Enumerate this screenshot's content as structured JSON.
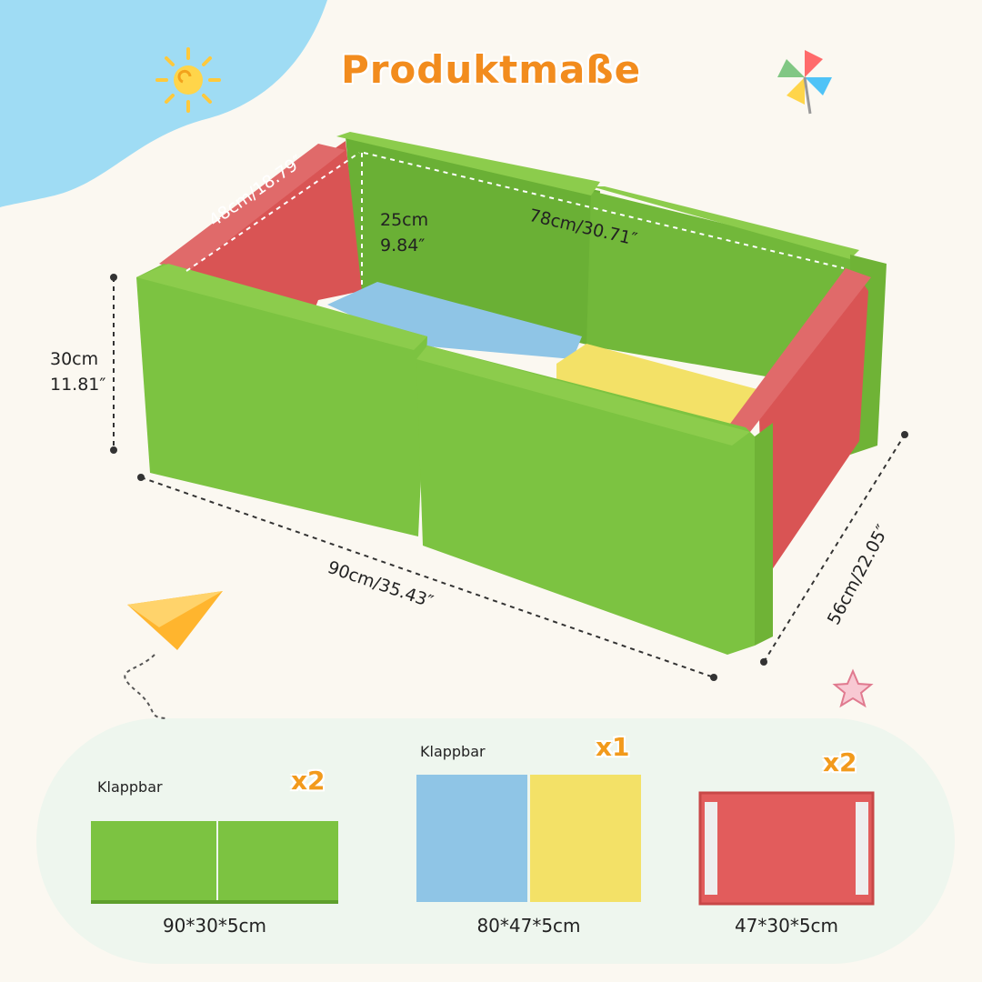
{
  "title": "Produktmaße",
  "dimensions": {
    "inner_width": "48cm/18.79″",
    "inner_height_cm": "25cm",
    "inner_height_in": "9.84″",
    "inner_length": "78cm/30.71″",
    "outer_height_cm": "30cm",
    "outer_height_in": "11.81″",
    "outer_length": "90cm/35.43″",
    "outer_width": "56cm/22.05″"
  },
  "parts": [
    {
      "label": "Klappbar",
      "count": "x2",
      "size": "90*30*5cm"
    },
    {
      "label": "Klappbar",
      "count": "x1",
      "size": "80*47*5cm"
    },
    {
      "label": "",
      "count": "x2",
      "size": "47*30*5cm"
    }
  ],
  "colors": {
    "green": "#7cc341",
    "red": "#e25c5c",
    "blue": "#8fc5e6",
    "yellow": "#f3e167",
    "accent": "#f28c1e"
  }
}
